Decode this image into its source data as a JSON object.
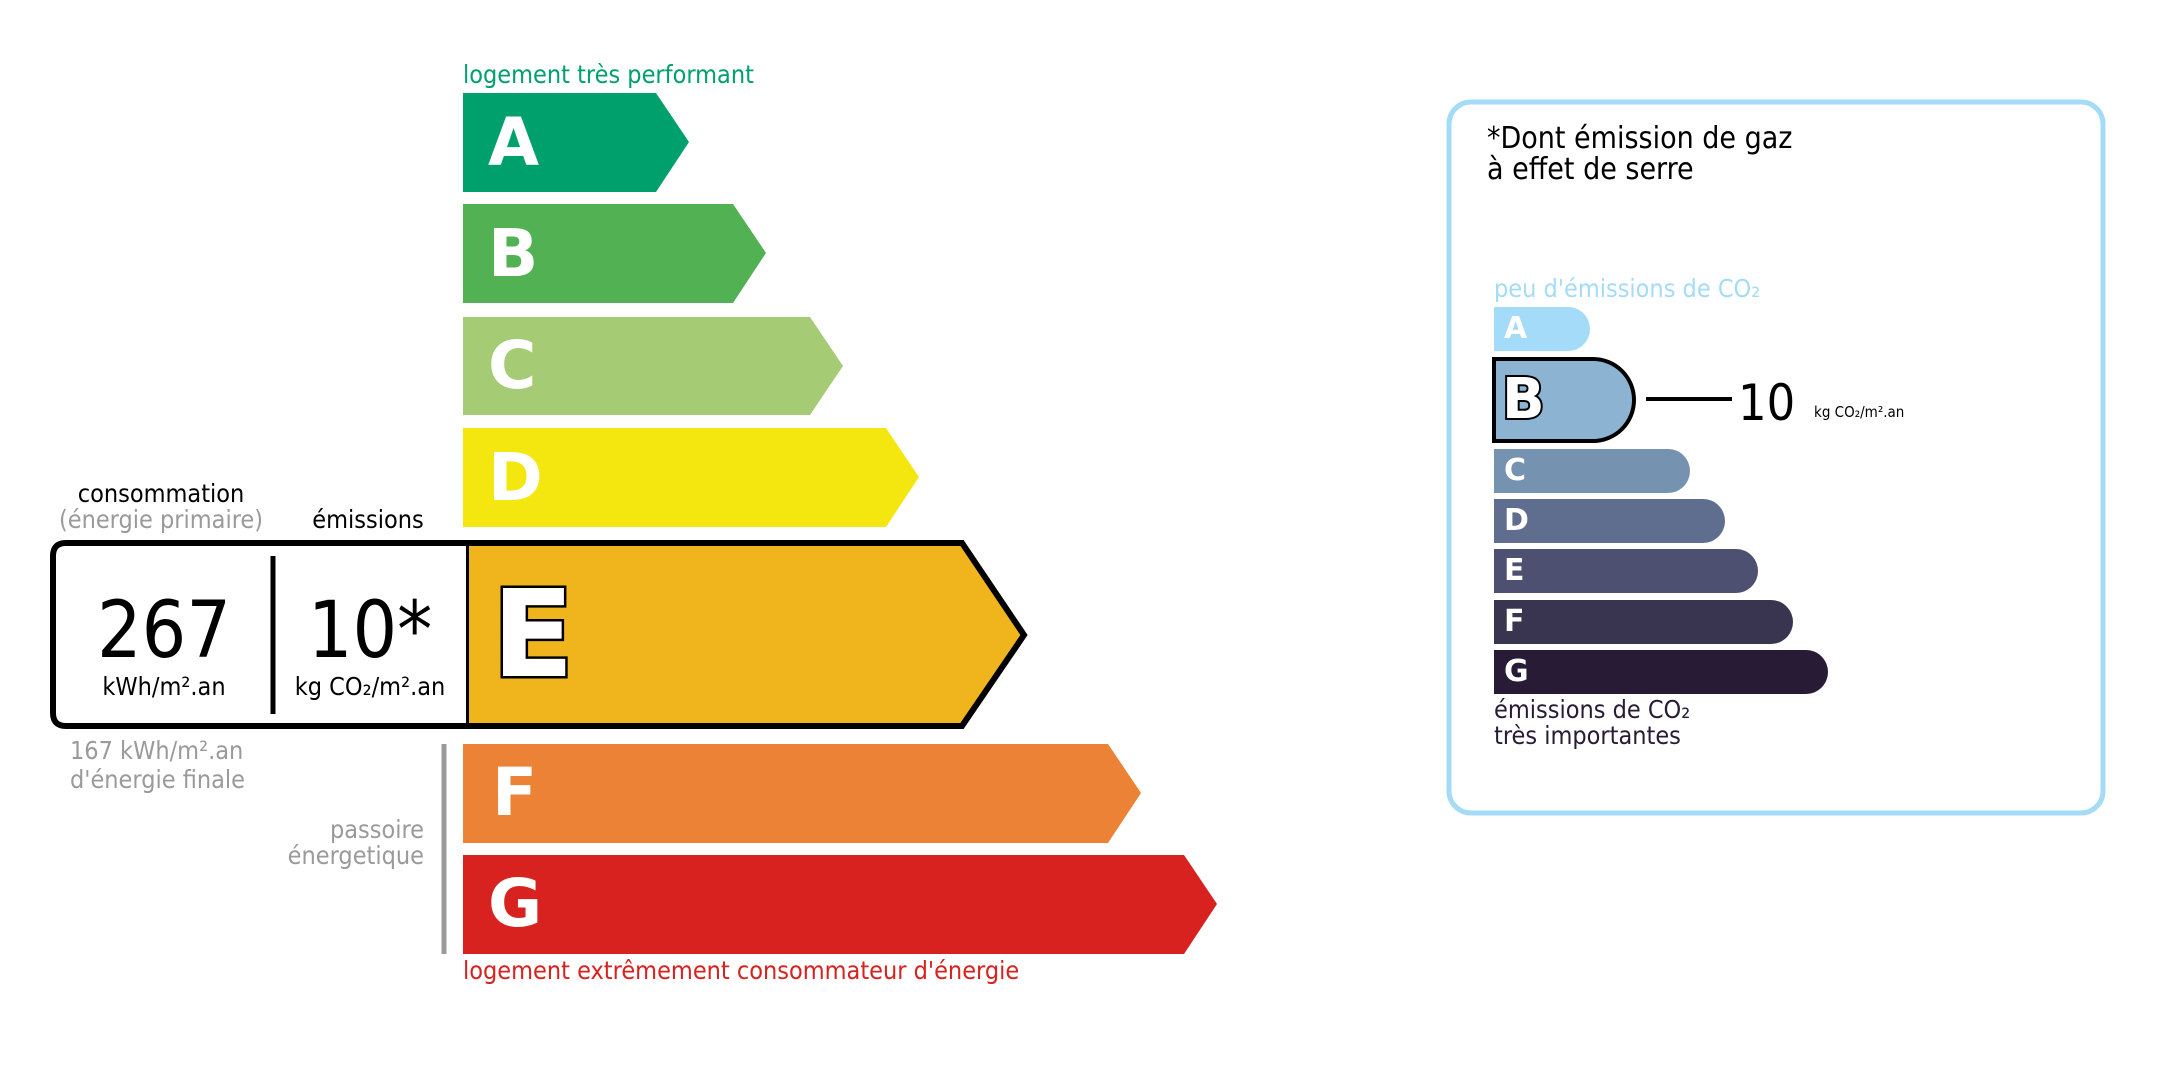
{
  "energy_label": {
    "top_caption": "logement très performant",
    "bottom_caption": "logement extrêmement consommateur d'énergie",
    "top_color": "#00a06d",
    "bottom_color": "#d7221f",
    "classes": [
      {
        "letter": "A",
        "color": "#00a06d"
      },
      {
        "letter": "B",
        "color": "#52b153"
      },
      {
        "letter": "C",
        "color": "#a5cc74"
      },
      {
        "letter": "D",
        "color": "#f4e70f"
      },
      {
        "letter": "E",
        "color": "#f0b41c"
      },
      {
        "letter": "F",
        "color": "#ec8235"
      },
      {
        "letter": "G",
        "color": "#d7221f"
      }
    ],
    "current_class": "E",
    "consumption_label": "consommation",
    "consumption_sublabel": "(énergie primaire)",
    "emissions_label": "émissions",
    "consumption_value": "267",
    "consumption_unit": "kWh/m².an",
    "emissions_value": "10*",
    "emissions_unit": "kg CO₂/m².an",
    "final_energy_value": "167 kWh/m².an",
    "final_energy_label": "d'énergie finale",
    "passoire_line1": "passoire",
    "passoire_line2": "énergetique"
  },
  "ghg_panel": {
    "title_line1": "*Dont émission de gaz",
    "title_line2": "à effet de serre",
    "top_caption": "peu d'émissions de CO₂",
    "bottom_caption_line1": "émissions de CO₂",
    "bottom_caption_line2": "très importantes",
    "border_color": "#a4dbf8",
    "classes": [
      {
        "letter": "A",
        "color": "#a4dbf8"
      },
      {
        "letter": "B",
        "color": "#8cb4d2"
      },
      {
        "letter": "C",
        "color": "#7692b1"
      },
      {
        "letter": "D",
        "color": "#5f6e8f"
      },
      {
        "letter": "E",
        "color": "#4d5070"
      },
      {
        "letter": "F",
        "color": "#393551"
      },
      {
        "letter": "G",
        "color": "#281b35"
      }
    ],
    "current_class": "B",
    "value": "10",
    "unit": "kg CO₂/m².an"
  }
}
